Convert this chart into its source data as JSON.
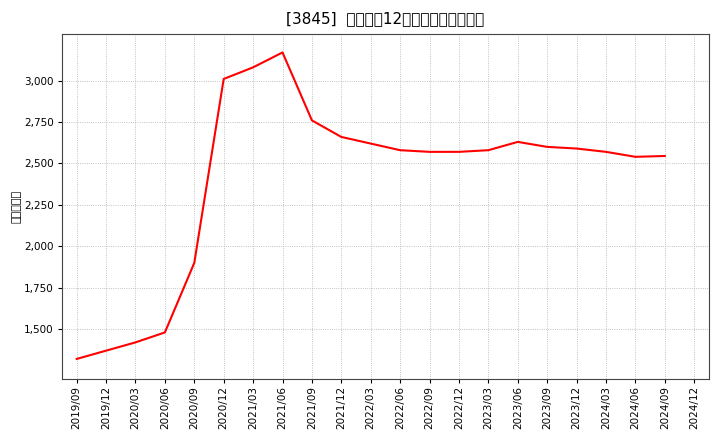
{
  "title": "[3845]  売上高の12か月移動合計の推移",
  "ylabel": "（百万円）",
  "line_color": "#ff0000",
  "background_color": "#ffffff",
  "plot_bg_color": "#ffffff",
  "grid_color": "#b0b0b0",
  "dates": [
    "2019/09",
    "2019/12",
    "2020/03",
    "2020/06",
    "2020/09",
    "2020/12",
    "2021/03",
    "2021/06",
    "2021/09",
    "2021/12",
    "2022/03",
    "2022/06",
    "2022/09",
    "2022/12",
    "2023/03",
    "2023/06",
    "2023/09",
    "2023/12",
    "2024/03",
    "2024/06",
    "2024/09",
    "2024/12"
  ],
  "values": [
    1320,
    1370,
    1420,
    1480,
    1900,
    3010,
    3080,
    3170,
    2760,
    2660,
    2620,
    2580,
    2570,
    2570,
    2580,
    2630,
    2600,
    2590,
    2570,
    2540,
    2545,
    null
  ],
  "yticks": [
    1500,
    1750,
    2000,
    2250,
    2500,
    2750,
    3000
  ],
  "ylim": [
    1200,
    3280
  ],
  "title_fontsize": 11,
  "axis_fontsize": 7.5,
  "ylabel_fontsize": 8,
  "line_width": 1.5
}
